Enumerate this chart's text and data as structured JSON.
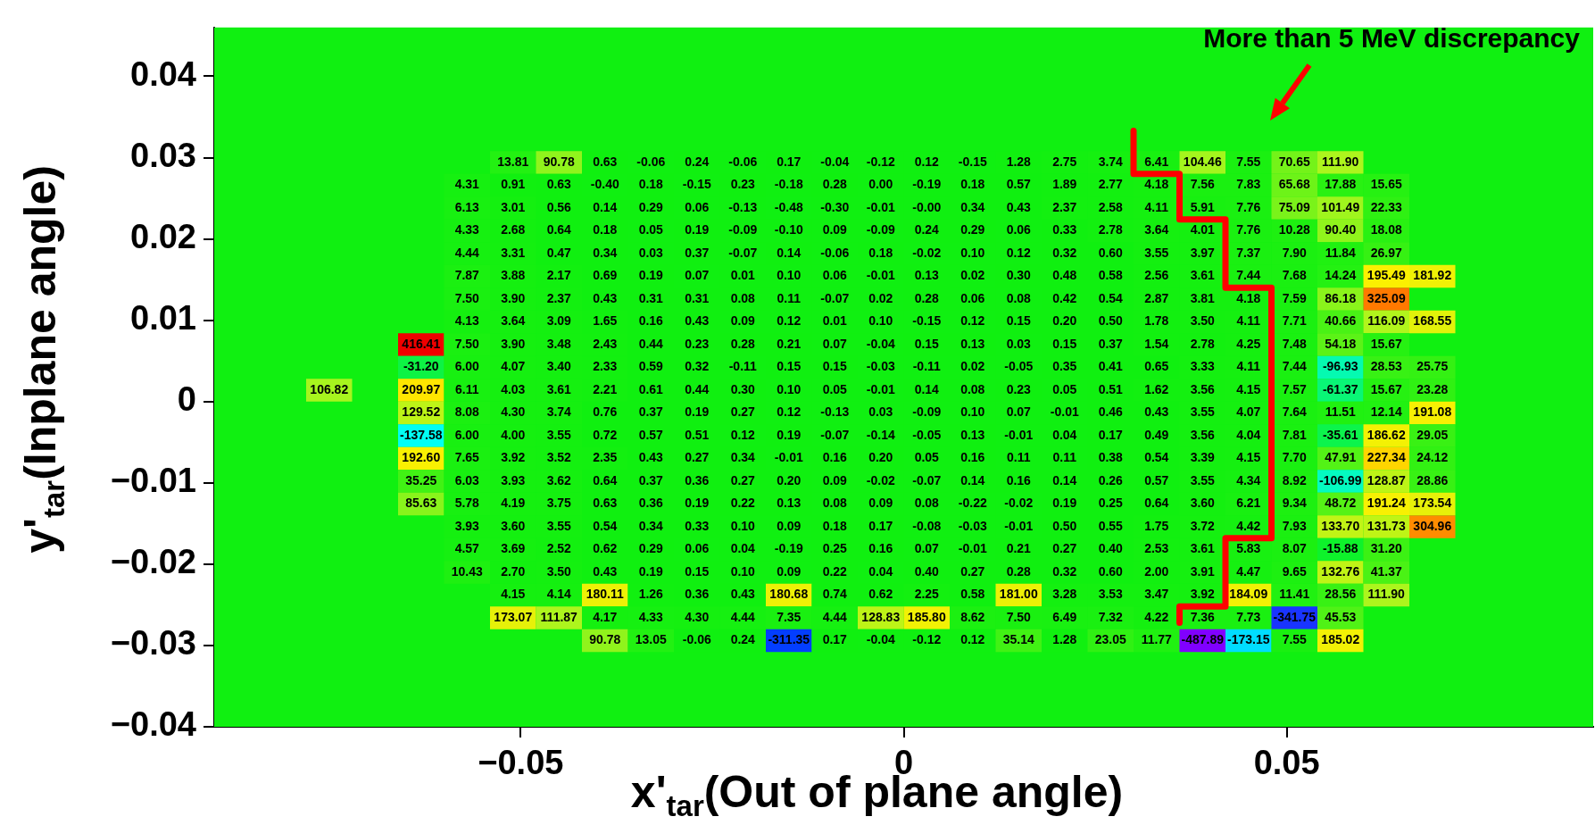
{
  "chart_data": {
    "type": "heatmap",
    "xlabel": "x'$_{tar}$(Out of plane angle)",
    "ylabel": "y'$_{tar}$(Inplane angle)",
    "annotations": [
      "More than 5 MeV discrepancy"
    ],
    "cell_labels": [
      [
        null,
        null,
        null,
        null,
        "13.81",
        "90.78",
        "0.63",
        "-0.06",
        "0.24",
        "-0.06",
        "0.17",
        "-0.04",
        "-0.12",
        "0.12",
        "-0.15",
        "1.28",
        "2.75",
        "3.74",
        "6.41",
        "104.46",
        "7.55",
        "70.65",
        "111.90",
        null,
        null
      ],
      [
        null,
        null,
        null,
        "4.31",
        "0.91",
        "0.63",
        "-0.40",
        "0.18",
        "-0.15",
        "0.23",
        "-0.18",
        "0.28",
        "0.00",
        "-0.19",
        "0.18",
        "0.57",
        "1.89",
        "2.77",
        "4.18",
        "7.56",
        "7.83",
        "65.68",
        "17.88",
        "15.65",
        null
      ],
      [
        null,
        null,
        null,
        "6.13",
        "3.01",
        "0.56",
        "0.14",
        "0.29",
        "0.06",
        "-0.13",
        "-0.48",
        "-0.30",
        "-0.01",
        "-0.00",
        "0.34",
        "0.43",
        "2.37",
        "2.58",
        "4.11",
        "5.91",
        "7.76",
        "75.09",
        "101.49",
        "22.33",
        null
      ],
      [
        null,
        null,
        null,
        "4.33",
        "2.68",
        "0.64",
        "0.18",
        "0.05",
        "0.19",
        "-0.09",
        "-0.10",
        "0.09",
        "-0.09",
        "0.24",
        "0.29",
        "0.06",
        "0.33",
        "2.78",
        "3.64",
        "4.01",
        "7.76",
        "10.28",
        "90.40",
        "18.08",
        null
      ],
      [
        null,
        null,
        null,
        "4.44",
        "3.31",
        "0.47",
        "0.34",
        "0.03",
        "0.37",
        "-0.07",
        "0.14",
        "-0.06",
        "0.18",
        "-0.02",
        "0.10",
        "0.12",
        "0.32",
        "0.60",
        "3.55",
        "3.97",
        "7.37",
        "7.90",
        "11.84",
        "26.97",
        null
      ],
      [
        null,
        null,
        null,
        "7.87",
        "3.88",
        "2.17",
        "0.69",
        "0.19",
        "0.07",
        "0.01",
        "0.10",
        "0.06",
        "-0.01",
        "0.13",
        "0.02",
        "0.30",
        "0.48",
        "0.58",
        "2.56",
        "3.61",
        "7.44",
        "7.68",
        "14.24",
        "195.49",
        "181.92"
      ],
      [
        null,
        null,
        null,
        "7.50",
        "3.90",
        "2.37",
        "0.43",
        "0.31",
        "0.31",
        "0.08",
        "0.11",
        "-0.07",
        "0.02",
        "0.28",
        "0.06",
        "0.08",
        "0.42",
        "0.54",
        "2.87",
        "3.81",
        "4.18",
        "7.59",
        "86.18",
        "325.09",
        null
      ],
      [
        null,
        null,
        null,
        "4.13",
        "3.64",
        "3.09",
        "1.65",
        "0.16",
        "0.43",
        "0.09",
        "0.12",
        "0.01",
        "0.10",
        "-0.15",
        "0.12",
        "0.15",
        "0.20",
        "0.50",
        "1.78",
        "3.50",
        "4.11",
        "7.71",
        "40.66",
        "116.09",
        "168.55"
      ],
      [
        null,
        null,
        "416.41",
        "7.50",
        "3.90",
        "3.48",
        "2.43",
        "0.44",
        "0.23",
        "0.28",
        "0.21",
        "0.07",
        "-0.04",
        "0.15",
        "0.13",
        "0.03",
        "0.15",
        "0.37",
        "1.54",
        "2.78",
        "4.25",
        "7.48",
        "54.18",
        "15.67",
        null
      ],
      [
        null,
        null,
        "-31.20",
        "6.00",
        "4.07",
        "3.40",
        "2.33",
        "0.59",
        "0.32",
        "-0.11",
        "0.15",
        "0.15",
        "-0.03",
        "-0.11",
        "0.02",
        "-0.05",
        "0.35",
        "0.41",
        "0.65",
        "3.33",
        "4.11",
        "7.44",
        "-96.93",
        "28.53",
        "25.75"
      ],
      [
        "106.82",
        null,
        "209.97",
        "6.11",
        "4.03",
        "3.61",
        "2.21",
        "0.61",
        "0.44",
        "0.30",
        "0.10",
        "0.05",
        "-0.01",
        "0.14",
        "0.08",
        "0.23",
        "0.05",
        "0.51",
        "1.62",
        "3.56",
        "4.15",
        "7.57",
        "-61.37",
        "15.67",
        "23.28"
      ],
      [
        null,
        null,
        "129.52",
        "8.08",
        "4.30",
        "3.74",
        "0.76",
        "0.37",
        "0.19",
        "0.27",
        "0.12",
        "-0.13",
        "0.03",
        "-0.09",
        "0.10",
        "0.07",
        "-0.01",
        "0.46",
        "0.43",
        "3.55",
        "4.07",
        "7.64",
        "11.51",
        "12.14",
        "191.08"
      ],
      [
        null,
        null,
        "-137.58",
        "6.00",
        "4.00",
        "3.55",
        "0.72",
        "0.57",
        "0.51",
        "0.12",
        "0.19",
        "-0.07",
        "-0.14",
        "-0.05",
        "0.13",
        "-0.01",
        "0.04",
        "0.17",
        "0.49",
        "3.56",
        "4.04",
        "7.81",
        "-35.61",
        "186.62",
        "29.05"
      ],
      [
        null,
        null,
        "192.60",
        "7.65",
        "3.92",
        "3.52",
        "2.35",
        "0.43",
        "0.27",
        "0.34",
        "-0.01",
        "0.16",
        "0.20",
        "0.05",
        "0.16",
        "0.11",
        "0.11",
        "0.38",
        "0.54",
        "3.39",
        "4.15",
        "7.70",
        "47.91",
        "227.34",
        "24.12"
      ],
      [
        null,
        null,
        "35.25",
        "6.03",
        "3.93",
        "3.62",
        "0.64",
        "0.37",
        "0.36",
        "0.27",
        "0.20",
        "0.09",
        "-0.02",
        "-0.07",
        "0.14",
        "0.16",
        "0.14",
        "0.26",
        "0.57",
        "3.55",
        "4.34",
        "8.92",
        "-106.99",
        "128.87",
        "28.86"
      ],
      [
        null,
        null,
        "85.63",
        "5.78",
        "4.19",
        "3.75",
        "0.63",
        "0.36",
        "0.19",
        "0.22",
        "0.13",
        "0.08",
        "0.09",
        "0.08",
        "-0.22",
        "-0.02",
        "0.19",
        "0.25",
        "0.64",
        "3.60",
        "6.21",
        "9.34",
        "48.72",
        "191.24",
        "173.54"
      ],
      [
        null,
        null,
        null,
        "3.93",
        "3.60",
        "3.55",
        "0.54",
        "0.34",
        "0.33",
        "0.10",
        "0.09",
        "0.18",
        "0.17",
        "-0.08",
        "-0.03",
        "-0.01",
        "0.50",
        "0.55",
        "1.75",
        "3.72",
        "4.42",
        "7.93",
        "133.70",
        "131.73",
        "304.96"
      ],
      [
        null,
        null,
        null,
        "4.57",
        "3.69",
        "2.52",
        "0.62",
        "0.29",
        "0.06",
        "0.04",
        "-0.19",
        "0.25",
        "0.16",
        "0.07",
        "-0.01",
        "0.21",
        "0.27",
        "0.40",
        "2.53",
        "3.61",
        "5.83",
        "8.07",
        "-15.88",
        "31.20",
        null
      ],
      [
        null,
        null,
        null,
        "10.43",
        "2.70",
        "3.50",
        "0.43",
        "0.19",
        "0.15",
        "0.10",
        "0.09",
        "0.22",
        "0.04",
        "0.40",
        "0.27",
        "0.28",
        "0.32",
        "0.60",
        "2.00",
        "3.91",
        "4.47",
        "9.65",
        "132.76",
        "41.37",
        null
      ],
      [
        null,
        null,
        null,
        null,
        "4.15",
        "4.14",
        "180.11",
        "1.26",
        "0.36",
        "0.43",
        "180.68",
        "0.74",
        "0.62",
        "2.25",
        "0.58",
        "181.00",
        "3.28",
        "3.53",
        "3.47",
        "3.92",
        "184.09",
        "11.41",
        "28.56",
        "111.90",
        null
      ],
      [
        null,
        null,
        null,
        null,
        "173.07",
        "111.87",
        "4.17",
        "4.33",
        "4.30",
        "4.44",
        "7.35",
        "4.44",
        "128.83",
        "185.80",
        "8.62",
        "7.50",
        "6.49",
        "7.32",
        "4.22",
        "7.36",
        "7.73",
        "-341.75",
        "45.53",
        null,
        null
      ],
      [
        null,
        null,
        null,
        null,
        null,
        null,
        "90.78",
        "13.05",
        "-0.06",
        "0.24",
        "-311.35",
        "0.17",
        "-0.04",
        "-0.12",
        "0.12",
        "35.14",
        "1.28",
        "23.05",
        "11.77",
        "-487.89",
        "-173.15",
        "7.55",
        "185.02",
        null,
        null
      ]
    ],
    "x": [
      -0.075,
      -0.069,
      -0.063,
      -0.057,
      -0.051,
      -0.045,
      -0.039,
      -0.033,
      -0.027,
      -0.021,
      -0.015,
      -0.009,
      -0.003,
      0.003,
      0.009,
      0.015,
      0.021,
      0.027,
      0.033,
      0.039,
      0.045,
      0.051,
      0.057,
      0.063,
      0.069
    ],
    "y": [
      0.0294,
      0.0266,
      0.0238,
      0.021,
      0.0182,
      0.0154,
      0.0126,
      0.0098,
      0.007,
      0.0042,
      0.0014,
      -0.0014,
      -0.0042,
      -0.007,
      -0.0098,
      -0.0126,
      -0.0154,
      -0.0182,
      -0.021,
      -0.0238,
      -0.0266,
      -0.0294
    ],
    "cells": [
      [
        null,
        null,
        null,
        null,
        13.81,
        90.78,
        0.63,
        -0.06,
        0.24,
        -0.06,
        0.17,
        -0.04,
        -0.12,
        0.12,
        -0.15,
        1.28,
        2.75,
        3.74,
        6.41,
        104.46,
        7.55,
        70.65,
        111.9,
        null,
        null
      ],
      [
        null,
        null,
        null,
        4.31,
        0.91,
        0.63,
        -0.4,
        0.18,
        -0.15,
        0.23,
        -0.18,
        0.28,
        0.0,
        -0.19,
        0.18,
        0.57,
        1.89,
        2.77,
        4.18,
        7.56,
        7.83,
        65.68,
        17.88,
        15.65,
        null
      ],
      [
        null,
        null,
        null,
        6.13,
        3.01,
        0.56,
        0.14,
        0.29,
        0.06,
        -0.13,
        -0.48,
        -0.3,
        -0.01,
        -0.0,
        0.34,
        0.43,
        2.37,
        2.58,
        4.11,
        5.91,
        7.76,
        75.09,
        101.49,
        22.33,
        null
      ],
      [
        null,
        null,
        null,
        4.33,
        2.68,
        0.64,
        0.18,
        0.05,
        0.19,
        -0.09,
        -0.1,
        0.09,
        -0.09,
        0.24,
        0.29,
        0.06,
        0.33,
        2.78,
        3.64,
        4.01,
        7.76,
        10.28,
        90.4,
        18.08,
        null
      ],
      [
        null,
        null,
        null,
        4.44,
        3.31,
        0.47,
        0.34,
        0.03,
        0.37,
        -0.07,
        0.14,
        -0.06,
        0.18,
        -0.02,
        0.1,
        0.12,
        0.32,
        0.6,
        3.55,
        3.97,
        7.37,
        7.9,
        11.84,
        26.97,
        null
      ],
      [
        null,
        null,
        null,
        7.87,
        3.88,
        2.17,
        0.69,
        0.19,
        0.07,
        0.01,
        0.1,
        0.06,
        -0.01,
        0.13,
        0.02,
        0.3,
        0.48,
        0.58,
        2.56,
        3.61,
        7.44,
        7.68,
        14.24,
        195.49,
        181.92
      ],
      [
        null,
        null,
        null,
        7.5,
        3.9,
        2.37,
        0.43,
        0.31,
        0.31,
        0.08,
        0.11,
        -0.07,
        0.02,
        0.28,
        0.06,
        0.08,
        0.42,
        0.54,
        2.87,
        3.81,
        4.18,
        7.59,
        86.18,
        325.09,
        null
      ],
      [
        null,
        null,
        null,
        4.13,
        3.64,
        3.09,
        1.65,
        0.16,
        0.43,
        0.09,
        0.12,
        0.01,
        0.1,
        -0.15,
        0.12,
        0.15,
        0.2,
        0.5,
        1.78,
        3.5,
        4.11,
        7.71,
        40.66,
        116.09,
        168.55
      ],
      [
        null,
        null,
        416.41,
        7.5,
        3.9,
        3.48,
        2.43,
        0.44,
        0.23,
        0.28,
        0.21,
        0.07,
        -0.04,
        0.15,
        0.13,
        0.03,
        0.15,
        0.37,
        1.54,
        2.78,
        4.25,
        7.48,
        54.18,
        15.67,
        null
      ],
      [
        null,
        null,
        -31.2,
        6.0,
        4.07,
        3.4,
        2.33,
        0.59,
        0.32,
        -0.11,
        0.15,
        0.15,
        -0.03,
        -0.11,
        0.02,
        -0.05,
        0.35,
        0.41,
        0.65,
        3.33,
        4.11,
        7.44,
        -96.93,
        28.53,
        25.75
      ],
      [
        106.82,
        null,
        209.97,
        6.11,
        4.03,
        3.61,
        2.21,
        0.61,
        0.44,
        0.3,
        0.1,
        0.05,
        -0.01,
        0.14,
        0.08,
        0.23,
        0.05,
        0.51,
        1.62,
        3.56,
        4.15,
        7.57,
        -61.37,
        15.67,
        23.28
      ],
      [
        null,
        null,
        129.52,
        8.08,
        4.3,
        3.74,
        0.76,
        0.37,
        0.19,
        0.27,
        0.12,
        -0.13,
        0.03,
        -0.09,
        0.1,
        0.07,
        -0.01,
        0.46,
        0.43,
        3.55,
        4.07,
        7.64,
        11.51,
        12.14,
        191.08
      ],
      [
        null,
        null,
        -137.58,
        6.0,
        4.0,
        3.55,
        0.72,
        0.57,
        0.51,
        0.12,
        0.19,
        -0.07,
        -0.14,
        -0.05,
        0.13,
        -0.01,
        0.04,
        0.17,
        0.49,
        3.56,
        4.04,
        7.81,
        -35.61,
        186.62,
        29.05
      ],
      [
        null,
        null,
        192.6,
        7.65,
        3.92,
        3.52,
        2.35,
        0.43,
        0.27,
        0.34,
        -0.01,
        0.16,
        0.2,
        0.05,
        0.16,
        0.11,
        0.11,
        0.38,
        0.54,
        3.39,
        4.15,
        7.7,
        47.91,
        227.34,
        24.12
      ],
      [
        null,
        null,
        35.25,
        6.03,
        3.93,
        3.62,
        0.64,
        0.37,
        0.36,
        0.27,
        0.2,
        0.09,
        -0.02,
        -0.07,
        0.14,
        0.16,
        0.14,
        0.26,
        0.57,
        3.55,
        4.34,
        8.92,
        -106.99,
        128.87,
        28.86
      ],
      [
        null,
        null,
        85.63,
        5.78,
        4.19,
        3.75,
        0.63,
        0.36,
        0.19,
        0.22,
        0.13,
        0.08,
        0.09,
        0.08,
        -0.22,
        -0.02,
        0.19,
        0.25,
        0.64,
        3.6,
        6.21,
        9.34,
        48.72,
        191.24,
        173.54
      ],
      [
        null,
        null,
        null,
        3.93,
        3.6,
        3.55,
        0.54,
        0.34,
        0.33,
        0.1,
        0.09,
        0.18,
        0.17,
        -0.08,
        -0.03,
        -0.01,
        0.5,
        0.55,
        1.75,
        3.72,
        4.42,
        7.93,
        133.7,
        131.73,
        304.96
      ],
      [
        null,
        null,
        null,
        4.57,
        3.69,
        2.52,
        0.62,
        0.29,
        0.06,
        0.04,
        -0.19,
        0.25,
        0.16,
        0.07,
        -0.01,
        0.21,
        0.27,
        0.4,
        2.53,
        3.61,
        5.83,
        8.07,
        -15.88,
        31.2,
        null
      ],
      [
        null,
        null,
        null,
        10.43,
        2.7,
        3.5,
        0.43,
        0.19,
        0.15,
        0.1,
        0.09,
        0.22,
        0.04,
        0.4,
        0.27,
        0.28,
        0.32,
        0.6,
        2.0,
        3.91,
        4.47,
        9.65,
        132.76,
        41.37,
        null
      ],
      [
        null,
        null,
        null,
        null,
        4.15,
        4.14,
        180.11,
        1.26,
        0.36,
        0.43,
        180.68,
        0.74,
        0.62,
        2.25,
        0.58,
        181.0,
        3.28,
        3.53,
        3.47,
        3.92,
        184.09,
        11.41,
        28.56,
        111.9,
        null
      ],
      [
        null,
        null,
        null,
        null,
        173.07,
        111.87,
        4.17,
        4.33,
        4.3,
        4.44,
        7.35,
        4.44,
        128.83,
        185.8,
        8.62,
        7.5,
        6.49,
        7.32,
        4.22,
        7.36,
        7.73,
        -341.75,
        45.53,
        null,
        null
      ],
      [
        null,
        null,
        null,
        null,
        null,
        null,
        90.78,
        13.05,
        -0.06,
        0.24,
        -311.35,
        0.17,
        -0.04,
        -0.12,
        0.12,
        35.14,
        1.28,
        23.05,
        11.77,
        -487.89,
        -173.15,
        7.55,
        185.02,
        null,
        null
      ]
    ],
    "xlim": [
      -0.09,
      0.09
    ],
    "ylim": [
      -0.04,
      0.046
    ],
    "xticks": [
      {
        "value": -0.05,
        "label": "−0.05"
      },
      0,
      0.05
    ],
    "yticks": [
      {
        "value": -0.04,
        "label": "−0.04"
      },
      {
        "value": -0.03,
        "label": "−0.03"
      },
      {
        "value": -0.02,
        "label": "−0.02"
      },
      {
        "value": -0.01,
        "label": "−0.01"
      },
      0,
      0.01,
      0.02,
      0.03,
      0.04
    ],
    "series": [
      {
        "type": "line",
        "color": "#ff0000",
        "x": [
          0.03,
          0.03,
          0.036,
          0.036,
          0.042,
          0.042,
          0.048,
          0.048,
          0.042,
          0.042,
          0.036,
          0.036
        ],
        "values": [
          0.0333,
          0.028,
          0.028,
          0.0224,
          0.0224,
          0.014,
          0.014,
          -0.0168,
          -0.0168,
          -0.0252,
          -0.0252,
          -0.0272
        ]
      }
    ]
  }
}
